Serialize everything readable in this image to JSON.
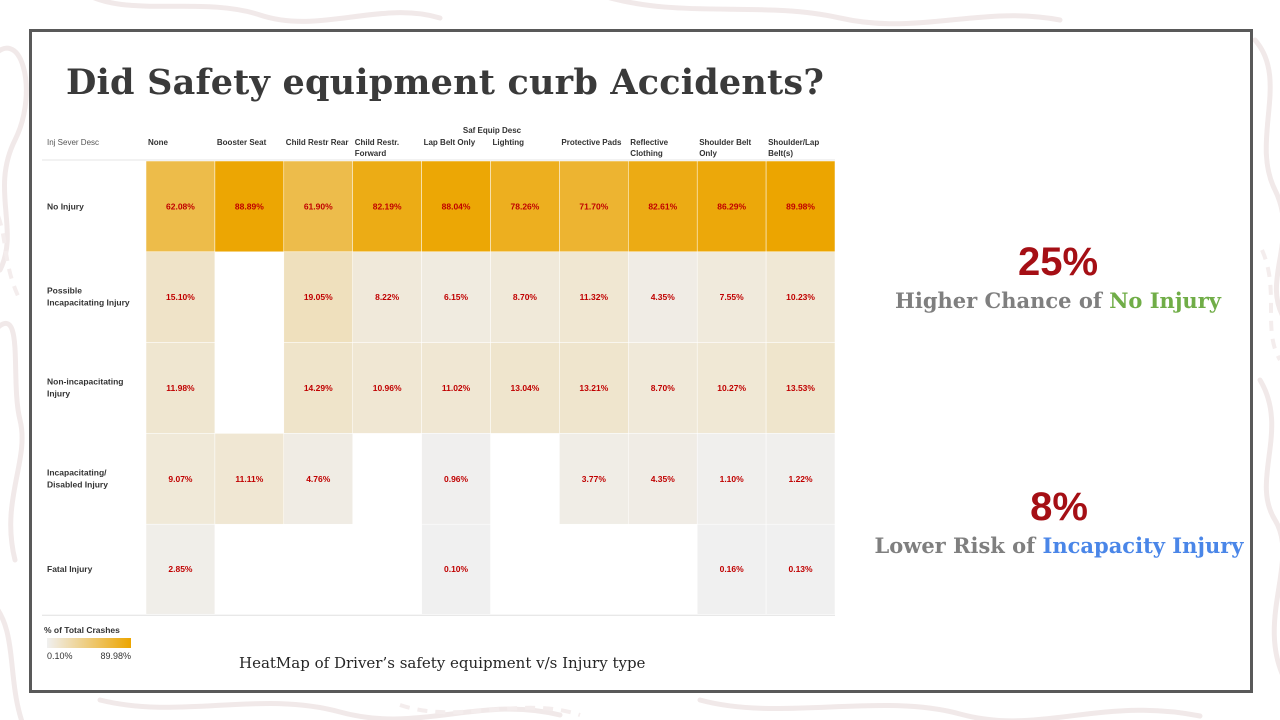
{
  "slide": {
    "title": "Did Safety equipment curb Accidents?",
    "caption": "HeatMap of Driver’s  safety equipment  v/s Injury type"
  },
  "stats": [
    {
      "value": "25%",
      "prefix": "Higher Chance of ",
      "highlight": "No Injury",
      "highlight_color": "#70ad47"
    },
    {
      "value": "8%",
      "prefix": "Lower Risk of ",
      "highlight": "Incapacity Injury",
      "highlight_color": "#4a86e8"
    }
  ],
  "chart_data": {
    "type": "heatmap",
    "title": "",
    "row_header": "Inj Sever Desc",
    "column_header": "Saf Equip Desc",
    "columns": [
      [
        "None"
      ],
      [
        "Booster Seat"
      ],
      [
        "Child Restr Rear"
      ],
      [
        "Child Restr.",
        "Forward"
      ],
      [
        "Lap Belt Only"
      ],
      [
        "Lighting"
      ],
      [
        "Protective Pads"
      ],
      [
        "Reflective",
        "Clothing"
      ],
      [
        "Shoulder Belt",
        "Only"
      ],
      [
        "Shoulder/Lap",
        "Belt(s)"
      ]
    ],
    "rows": [
      [
        "No Injury"
      ],
      [
        "Possible",
        "Incapacitating Injury"
      ],
      [
        "Non-incapacitating",
        "Injury"
      ],
      [
        "Incapacitating/",
        "Disabled Injury"
      ],
      [
        "Fatal Injury"
      ]
    ],
    "values": [
      [
        62.08,
        88.89,
        61.9,
        82.19,
        88.04,
        78.26,
        71.7,
        82.61,
        86.29,
        89.98
      ],
      [
        15.1,
        null,
        19.05,
        8.22,
        6.15,
        8.7,
        11.32,
        4.35,
        7.55,
        10.23
      ],
      [
        11.98,
        null,
        14.29,
        10.96,
        11.02,
        13.04,
        13.21,
        8.7,
        10.27,
        13.53
      ],
      [
        9.07,
        11.11,
        4.76,
        null,
        0.96,
        null,
        3.77,
        4.35,
        1.1,
        1.22
      ],
      [
        2.85,
        null,
        null,
        null,
        0.1,
        null,
        null,
        null,
        0.16,
        0.13
      ]
    ],
    "value_suffix": "%",
    "color_scale": {
      "title": "% of Total Crashes",
      "min": 0.1,
      "max": 89.98,
      "min_label": "0.10%",
      "max_label": "89.98%",
      "min_color": "#f0f0f0",
      "max_color": "#eca500"
    },
    "label_color": "#c00000"
  }
}
